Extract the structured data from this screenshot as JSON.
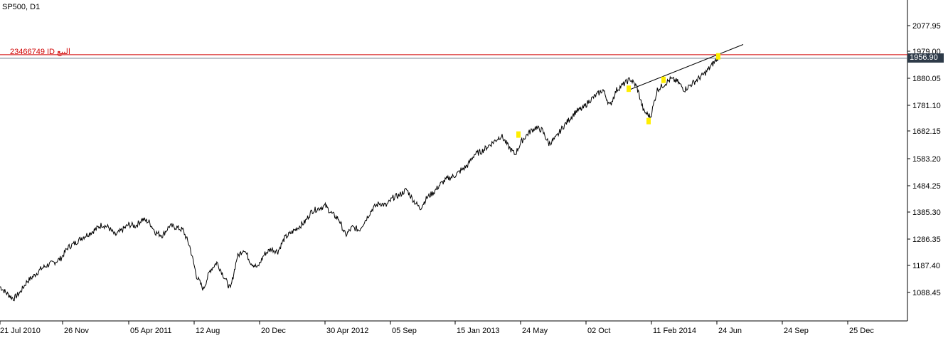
{
  "header": {
    "symbol_timeframe": "SP500, D1"
  },
  "order_line": {
    "label": "23466749 ID البيع",
    "color": "#d00000",
    "price": 1970.0
  },
  "current_price": {
    "label": "1956.90",
    "value": 1956.9,
    "badge_color": "#2d3a48"
  },
  "chart_data": {
    "type": "line",
    "title": "",
    "xlabel": "",
    "ylabel": "",
    "ylim": [
      1040,
      2140
    ],
    "y_ticks": [
      "2077.95",
      "1979.00",
      "1880.05",
      "1781.10",
      "1682.15",
      "1583.20",
      "1484.25",
      "1385.30",
      "1286.35",
      "1187.40",
      "1088.45"
    ],
    "x_ticks": [
      "21 Jul 2010",
      "26 Nov",
      "05 Apr 2011",
      "12 Aug",
      "20 Dec",
      "30 Apr 2012",
      "05 Sep",
      "15 Jan 2013",
      "24 May",
      "02 Oct",
      "11 Feb 2014",
      "24 Jun",
      "24 Sep",
      "25 Dec"
    ],
    "grid": false,
    "series": [
      {
        "values_approx": [
          1110,
          1085,
          1065,
          1090,
          1130,
          1150,
          1175,
          1190,
          1200,
          1215,
          1255,
          1270,
          1290,
          1305,
          1320,
          1340,
          1330,
          1300,
          1320,
          1340,
          1335,
          1360,
          1350,
          1310,
          1300,
          1335,
          1330,
          1320,
          1260,
          1150,
          1100,
          1170,
          1200,
          1150,
          1100,
          1220,
          1250,
          1200,
          1180,
          1230,
          1250,
          1240,
          1290,
          1310,
          1330,
          1350,
          1390,
          1400,
          1410,
          1380,
          1360,
          1300,
          1330,
          1320,
          1360,
          1400,
          1420,
          1410,
          1440,
          1450,
          1470,
          1430,
          1400,
          1440,
          1460,
          1490,
          1510,
          1520,
          1540,
          1560,
          1600,
          1610,
          1630,
          1650,
          1670,
          1630,
          1600,
          1650,
          1680,
          1700,
          1690,
          1640,
          1660,
          1700,
          1730,
          1760,
          1770,
          1800,
          1820,
          1840,
          1780,
          1840,
          1860,
          1880,
          1850,
          1760,
          1740,
          1840,
          1860,
          1880,
          1870,
          1840,
          1860,
          1880,
          1900,
          1930,
          1960
        ]
      }
    ],
    "trendline": {
      "from": 1840,
      "to": 2008
    },
    "markers": [
      "peak-marker",
      "peak-marker",
      "peak-marker",
      "trough-marker",
      "peak-marker"
    ]
  }
}
